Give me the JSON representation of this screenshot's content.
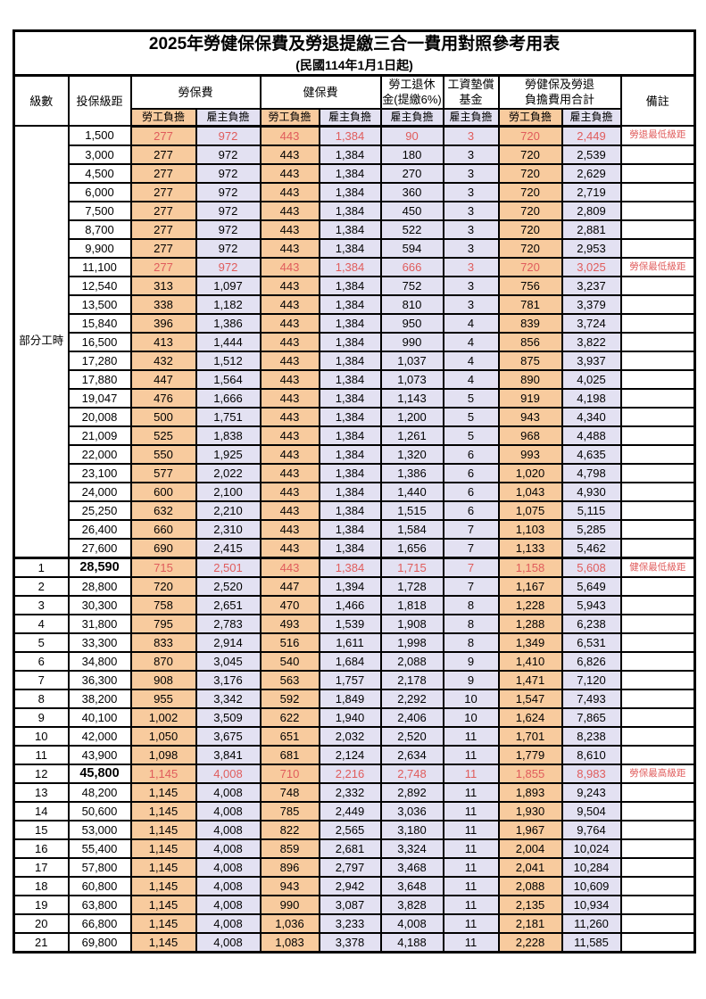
{
  "title": "2025年勞健保保費及勞退提繳三合一費用對照參考用表",
  "subtitle": "(民國114年1月1日起)",
  "colors": {
    "employee_bg": "#f8cb9e",
    "employer_bg": "#e3e1f2",
    "highlight_text": "#e05c5c",
    "border": "#000000"
  },
  "headers": {
    "level": "級數",
    "bracket": "投保級距",
    "labor_insurance": "勞保費",
    "health_insurance": "健保費",
    "pension_line1": "勞工退休",
    "pension_line2": "金(提繳6%)",
    "wage_fund_line1": "工資墊償",
    "wage_fund_line2": "基金",
    "total_line1": "勞健保及勞退",
    "total_line2": "負擔費用合計",
    "note": "備註",
    "employee_share": "勞工負擔",
    "employer_share": "雇主負擔"
  },
  "table": {
    "section_label": "部分工時",
    "section_rowspan": 23,
    "row_columns": [
      "level",
      "bracket",
      "labor_employee",
      "labor_employer",
      "health_employee",
      "health_employer",
      "pension_employer",
      "fund_employer",
      "total_employee",
      "total_employer",
      "note",
      "highlight",
      "bold_bracket"
    ],
    "rows": [
      [
        "",
        "1,500",
        "277",
        "972",
        "443",
        "1,384",
        "90",
        "3",
        "720",
        "2,449",
        "勞退最低級距",
        1,
        0
      ],
      [
        "",
        "3,000",
        "277",
        "972",
        "443",
        "1,384",
        "180",
        "3",
        "720",
        "2,539",
        "",
        0,
        0
      ],
      [
        "",
        "4,500",
        "277",
        "972",
        "443",
        "1,384",
        "270",
        "3",
        "720",
        "2,629",
        "",
        0,
        0
      ],
      [
        "",
        "6,000",
        "277",
        "972",
        "443",
        "1,384",
        "360",
        "3",
        "720",
        "2,719",
        "",
        0,
        0
      ],
      [
        "",
        "7,500",
        "277",
        "972",
        "443",
        "1,384",
        "450",
        "3",
        "720",
        "2,809",
        "",
        0,
        0
      ],
      [
        "",
        "8,700",
        "277",
        "972",
        "443",
        "1,384",
        "522",
        "3",
        "720",
        "2,881",
        "",
        0,
        0
      ],
      [
        "",
        "9,900",
        "277",
        "972",
        "443",
        "1,384",
        "594",
        "3",
        "720",
        "2,953",
        "",
        0,
        0
      ],
      [
        "",
        "11,100",
        "277",
        "972",
        "443",
        "1,384",
        "666",
        "3",
        "720",
        "3,025",
        "勞保最低級距",
        1,
        0
      ],
      [
        "",
        "12,540",
        "313",
        "1,097",
        "443",
        "1,384",
        "752",
        "3",
        "756",
        "3,237",
        "",
        0,
        0
      ],
      [
        "",
        "13,500",
        "338",
        "1,182",
        "443",
        "1,384",
        "810",
        "3",
        "781",
        "3,379",
        "",
        0,
        0
      ],
      [
        "",
        "15,840",
        "396",
        "1,386",
        "443",
        "1,384",
        "950",
        "4",
        "839",
        "3,724",
        "",
        0,
        0
      ],
      [
        "",
        "16,500",
        "413",
        "1,444",
        "443",
        "1,384",
        "990",
        "4",
        "856",
        "3,822",
        "",
        0,
        0
      ],
      [
        "",
        "17,280",
        "432",
        "1,512",
        "443",
        "1,384",
        "1,037",
        "4",
        "875",
        "3,937",
        "",
        0,
        0
      ],
      [
        "",
        "17,880",
        "447",
        "1,564",
        "443",
        "1,384",
        "1,073",
        "4",
        "890",
        "4,025",
        "",
        0,
        0
      ],
      [
        "",
        "19,047",
        "476",
        "1,666",
        "443",
        "1,384",
        "1,143",
        "5",
        "919",
        "4,198",
        "",
        0,
        0
      ],
      [
        "",
        "20,008",
        "500",
        "1,751",
        "443",
        "1,384",
        "1,200",
        "5",
        "943",
        "4,340",
        "",
        0,
        0
      ],
      [
        "",
        "21,009",
        "525",
        "1,838",
        "443",
        "1,384",
        "1,261",
        "5",
        "968",
        "4,488",
        "",
        0,
        0
      ],
      [
        "",
        "22,000",
        "550",
        "1,925",
        "443",
        "1,384",
        "1,320",
        "6",
        "993",
        "4,635",
        "",
        0,
        0
      ],
      [
        "",
        "23,100",
        "577",
        "2,022",
        "443",
        "1,384",
        "1,386",
        "6",
        "1,020",
        "4,798",
        "",
        0,
        0
      ],
      [
        "",
        "24,000",
        "600",
        "2,100",
        "443",
        "1,384",
        "1,440",
        "6",
        "1,043",
        "4,930",
        "",
        0,
        0
      ],
      [
        "",
        "25,250",
        "632",
        "2,210",
        "443",
        "1,384",
        "1,515",
        "6",
        "1,075",
        "5,115",
        "",
        0,
        0
      ],
      [
        "",
        "26,400",
        "660",
        "2,310",
        "443",
        "1,384",
        "1,584",
        "7",
        "1,103",
        "5,285",
        "",
        0,
        0
      ],
      [
        "",
        "27,600",
        "690",
        "2,415",
        "443",
        "1,384",
        "1,656",
        "7",
        "1,133",
        "5,462",
        "",
        0,
        0
      ],
      [
        "1",
        "28,590",
        "715",
        "2,501",
        "443",
        "1,384",
        "1,715",
        "7",
        "1,158",
        "5,608",
        "健保最低級距",
        1,
        1
      ],
      [
        "2",
        "28,800",
        "720",
        "2,520",
        "447",
        "1,394",
        "1,728",
        "7",
        "1,167",
        "5,649",
        "",
        0,
        0
      ],
      [
        "3",
        "30,300",
        "758",
        "2,651",
        "470",
        "1,466",
        "1,818",
        "8",
        "1,228",
        "5,943",
        "",
        0,
        0
      ],
      [
        "4",
        "31,800",
        "795",
        "2,783",
        "493",
        "1,539",
        "1,908",
        "8",
        "1,288",
        "6,238",
        "",
        0,
        0
      ],
      [
        "5",
        "33,300",
        "833",
        "2,914",
        "516",
        "1,611",
        "1,998",
        "8",
        "1,349",
        "6,531",
        "",
        0,
        0
      ],
      [
        "6",
        "34,800",
        "870",
        "3,045",
        "540",
        "1,684",
        "2,088",
        "9",
        "1,410",
        "6,826",
        "",
        0,
        0
      ],
      [
        "7",
        "36,300",
        "908",
        "3,176",
        "563",
        "1,757",
        "2,178",
        "9",
        "1,471",
        "7,120",
        "",
        0,
        0
      ],
      [
        "8",
        "38,200",
        "955",
        "3,342",
        "592",
        "1,849",
        "2,292",
        "10",
        "1,547",
        "7,493",
        "",
        0,
        0
      ],
      [
        "9",
        "40,100",
        "1,002",
        "3,509",
        "622",
        "1,940",
        "2,406",
        "10",
        "1,624",
        "7,865",
        "",
        0,
        0
      ],
      [
        "10",
        "42,000",
        "1,050",
        "3,675",
        "651",
        "2,032",
        "2,520",
        "11",
        "1,701",
        "8,238",
        "",
        0,
        0
      ],
      [
        "11",
        "43,900",
        "1,098",
        "3,841",
        "681",
        "2,124",
        "2,634",
        "11",
        "1,779",
        "8,610",
        "",
        0,
        0
      ],
      [
        "12",
        "45,800",
        "1,145",
        "4,008",
        "710",
        "2,216",
        "2,748",
        "11",
        "1,855",
        "8,983",
        "勞保最高級距",
        1,
        1
      ],
      [
        "13",
        "48,200",
        "1,145",
        "4,008",
        "748",
        "2,332",
        "2,892",
        "11",
        "1,893",
        "9,243",
        "",
        0,
        0
      ],
      [
        "14",
        "50,600",
        "1,145",
        "4,008",
        "785",
        "2,449",
        "3,036",
        "11",
        "1,930",
        "9,504",
        "",
        0,
        0
      ],
      [
        "15",
        "53,000",
        "1,145",
        "4,008",
        "822",
        "2,565",
        "3,180",
        "11",
        "1,967",
        "9,764",
        "",
        0,
        0
      ],
      [
        "16",
        "55,400",
        "1,145",
        "4,008",
        "859",
        "2,681",
        "3,324",
        "11",
        "2,004",
        "10,024",
        "",
        0,
        0
      ],
      [
        "17",
        "57,800",
        "1,145",
        "4,008",
        "896",
        "2,797",
        "3,468",
        "11",
        "2,041",
        "10,284",
        "",
        0,
        0
      ],
      [
        "18",
        "60,800",
        "1,145",
        "4,008",
        "943",
        "2,942",
        "3,648",
        "11",
        "2,088",
        "10,609",
        "",
        0,
        0
      ],
      [
        "19",
        "63,800",
        "1,145",
        "4,008",
        "990",
        "3,087",
        "3,828",
        "11",
        "2,135",
        "10,934",
        "",
        0,
        0
      ],
      [
        "20",
        "66,800",
        "1,145",
        "4,008",
        "1,036",
        "3,233",
        "4,008",
        "11",
        "2,181",
        "11,260",
        "",
        0,
        0
      ],
      [
        "21",
        "69,800",
        "1,145",
        "4,008",
        "1,083",
        "3,378",
        "4,188",
        "11",
        "2,228",
        "11,585",
        "",
        0,
        0
      ]
    ]
  }
}
